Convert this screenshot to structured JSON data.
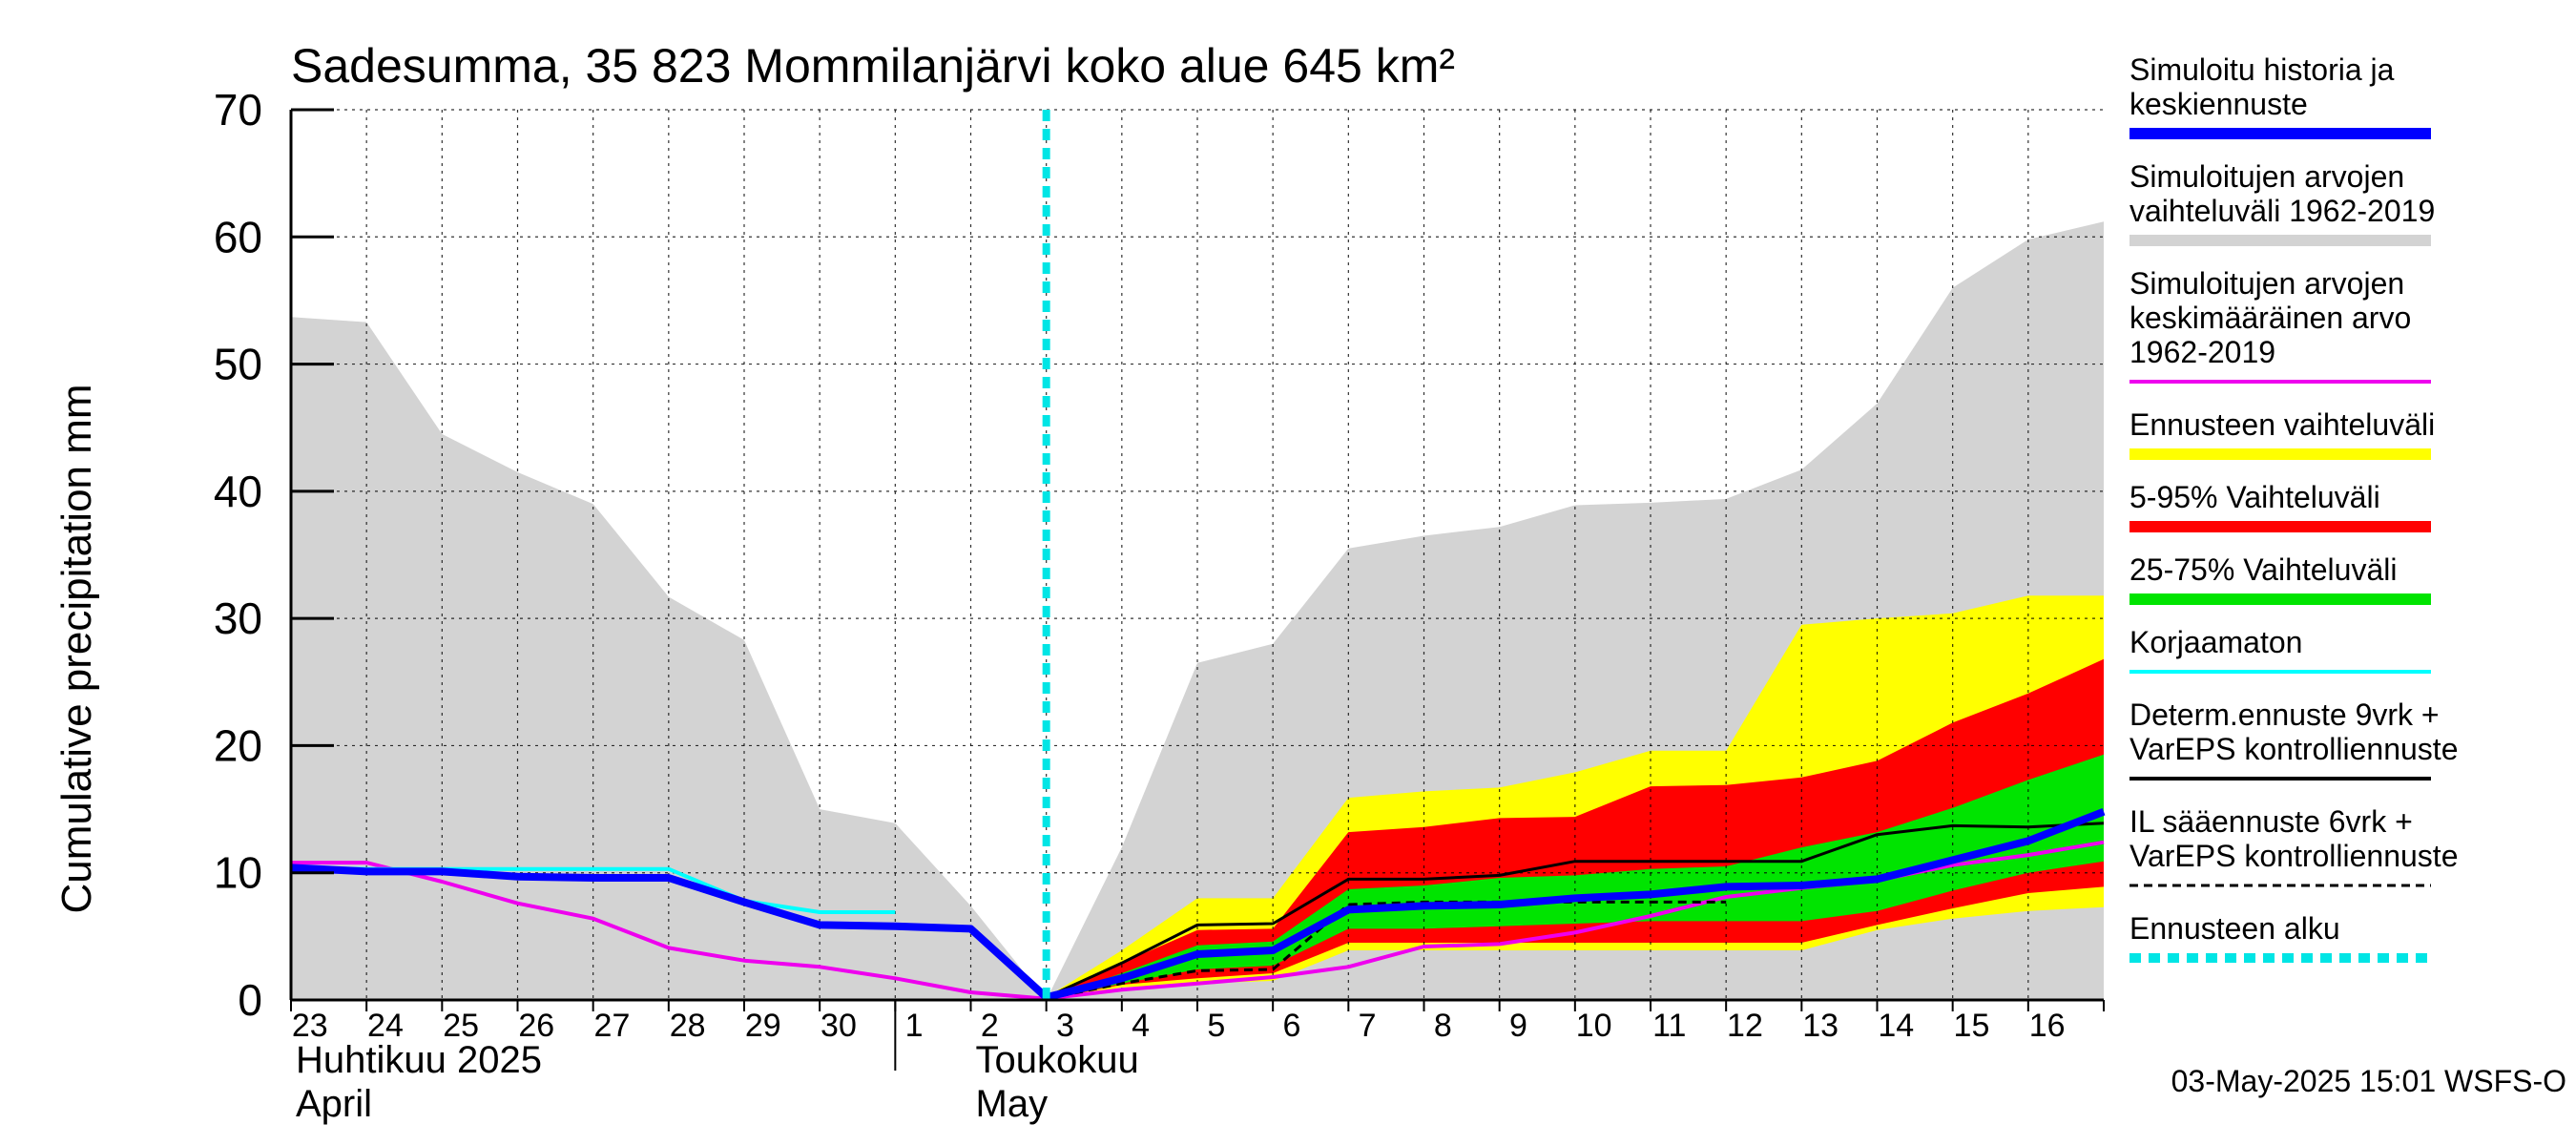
{
  "chart_data": {
    "type": "area",
    "title": "Sadesumma, 35 823 Mommilanjärvi koko alue 645 km²",
    "ylabel": "Cumulative precipitation   mm",
    "ylim": [
      0,
      70
    ],
    "yticks": [
      0,
      10,
      20,
      30,
      40,
      50,
      60,
      70
    ],
    "x_range": [
      0,
      24
    ],
    "grid": true,
    "day_labels": [
      "23",
      "24",
      "25",
      "26",
      "27",
      "28",
      "29",
      "30",
      "1",
      "2",
      "3",
      "4",
      "5",
      "6",
      "7",
      "8",
      "9",
      "10",
      "11",
      "12",
      "13",
      "14",
      "15",
      "16"
    ],
    "month_labels": [
      {
        "line1": "Huhtikuu  2025",
        "line2": "April",
        "at_day_index": 0
      },
      {
        "line1": "Toukokuu",
        "line2": "May",
        "at_day_index": 9
      }
    ],
    "forecast_start_x": 10.0,
    "timestamp": "03-May-2025 15:01 WSFS-O",
    "colors": {
      "history_range": "#d3d3d3",
      "forecast_range": "#ffff00",
      "p5_95": "#ff0000",
      "p25_75": "#00e400",
      "simulated": "#0000ff",
      "mean": "#ee00ee",
      "uncorrected": "#00ffff",
      "determ": "#000000",
      "il": "#000000",
      "forecast_start": "#00e5e5"
    },
    "series": {
      "history_range": {
        "x": [
          0,
          1,
          2,
          3,
          4,
          5,
          6,
          7,
          8,
          9,
          10,
          11,
          12,
          13,
          14,
          15,
          16,
          17,
          18,
          19,
          20,
          21,
          22,
          23,
          24
        ],
        "upper": [
          53.7,
          53.3,
          44.5,
          41.5,
          39.0,
          31.7,
          28.3,
          15.0,
          13.9,
          7.4,
          0,
          12.0,
          26.5,
          28.0,
          35.5,
          36.5,
          37.2,
          38.9,
          39.1,
          39.4,
          41.7,
          46.9,
          56.0,
          59.8,
          61.2
        ],
        "lower": [
          0,
          0,
          0,
          0,
          0,
          0,
          0,
          0,
          0,
          0,
          0,
          0,
          0,
          0,
          0,
          0,
          0,
          0,
          0,
          0,
          0,
          0,
          0,
          0,
          0
        ]
      },
      "forecast_range": {
        "x": [
          10,
          11,
          12,
          13,
          14,
          15,
          16,
          17,
          18,
          19,
          20,
          21,
          22,
          23,
          24
        ],
        "upper": [
          0.2,
          3.9,
          8.0,
          8.0,
          15.9,
          16.4,
          16.7,
          17.9,
          19.6,
          19.6,
          29.5,
          30.0,
          30.4,
          31.8,
          31.8
        ],
        "lower": [
          0,
          1.0,
          1.3,
          1.5,
          3.9,
          3.9,
          3.9,
          3.9,
          3.9,
          3.9,
          3.9,
          5.5,
          6.4,
          7.0,
          7.3
        ]
      },
      "p5_95": {
        "x": [
          10,
          11,
          12,
          13,
          14,
          15,
          16,
          17,
          18,
          19,
          20,
          21,
          22,
          23,
          24
        ],
        "upper": [
          0.2,
          2.9,
          5.5,
          5.6,
          13.2,
          13.6,
          14.3,
          14.4,
          16.8,
          16.9,
          17.5,
          18.8,
          21.8,
          24.1,
          26.8
        ],
        "lower": [
          0,
          1.2,
          1.7,
          2.1,
          4.5,
          4.5,
          4.5,
          4.5,
          4.5,
          4.5,
          4.5,
          5.9,
          7.2,
          8.4,
          8.9
        ]
      },
      "p25_75": {
        "x": [
          10,
          11,
          12,
          13,
          14,
          15,
          16,
          17,
          18,
          19,
          20,
          21,
          22,
          23,
          24
        ],
        "upper": [
          0.1,
          2.1,
          4.3,
          4.6,
          8.7,
          9.0,
          9.6,
          9.8,
          10.3,
          10.5,
          12.0,
          13.2,
          15.1,
          17.3,
          19.3
        ],
        "lower": [
          0,
          1.3,
          2.4,
          2.7,
          5.6,
          5.6,
          5.8,
          6.0,
          6.2,
          6.2,
          6.2,
          7.0,
          8.6,
          10.0,
          10.9
        ]
      },
      "mean": {
        "name": "Simuloitujen arvojen keskimääräinen arvo 1962-2019",
        "x": [
          0,
          1,
          2,
          3,
          4,
          5,
          6,
          7,
          8,
          9,
          10,
          11,
          12,
          13,
          14,
          15,
          16,
          17,
          18,
          19,
          20,
          21,
          22,
          23,
          24
        ],
        "values": [
          10.8,
          10.8,
          9.3,
          7.6,
          6.4,
          4.1,
          3.1,
          2.6,
          1.7,
          0.6,
          0.1,
          0.8,
          1.3,
          1.8,
          2.6,
          4.2,
          4.4,
          5.3,
          6.6,
          8.1,
          8.8,
          9.4,
          10.6,
          11.4,
          12.4
        ]
      },
      "uncorrected": {
        "name": "Korjaamaton",
        "x": [
          0,
          1,
          2,
          3,
          4,
          5,
          6,
          7,
          8
        ],
        "values": [
          10.4,
          10.3,
          10.3,
          10.3,
          10.3,
          10.3,
          7.8,
          6.9,
          6.9
        ]
      },
      "simulated": {
        "name": "Simuloitu historia ja keskiennuste",
        "x": [
          0,
          1,
          2,
          3,
          4,
          5,
          6,
          7,
          8,
          9,
          10,
          11,
          12,
          13,
          14,
          15,
          16,
          17,
          18,
          19,
          20,
          21,
          22,
          23,
          24
        ],
        "values": [
          10.4,
          10.1,
          10.1,
          9.7,
          9.6,
          9.6,
          7.7,
          5.9,
          5.8,
          5.6,
          0.2,
          1.7,
          3.6,
          3.9,
          7.1,
          7.4,
          7.5,
          8.0,
          8.3,
          8.9,
          9.0,
          9.5,
          11.0,
          12.5,
          14.8
        ]
      },
      "determ": {
        "name": "Determ.ennuste 9vrk + VarEPS kontrolliennuste",
        "x": [
          10,
          11,
          12,
          13,
          14,
          15,
          16,
          17,
          18,
          19,
          20,
          21,
          22,
          23,
          24
        ],
        "values": [
          0.2,
          2.9,
          5.9,
          6.0,
          9.5,
          9.5,
          9.8,
          10.9,
          10.9,
          10.9,
          10.9,
          13.0,
          13.7,
          13.6,
          13.9
        ]
      },
      "il": {
        "name": "IL sääennuste 6vrk + VarEPS kontrolliennuste",
        "x": [
          10,
          11,
          12,
          13,
          14,
          15,
          16,
          17,
          18,
          19
        ],
        "values": [
          0.1,
          1.3,
          2.3,
          2.4,
          7.5,
          7.7,
          7.7,
          7.7,
          7.7,
          7.7
        ]
      }
    },
    "legend": [
      {
        "lines": [
          "Simuloitu historia ja",
          "keskiennuste"
        ],
        "swatch": "simulated",
        "style": "thick"
      },
      {
        "lines": [
          "Simuloitujen arvojen",
          "vaihteluväli 1962-2019"
        ],
        "swatch": "history_range",
        "style": "thick"
      },
      {
        "lines": [
          "Simuloitujen arvojen",
          "keskimääräinen arvo",
          "   1962-2019"
        ],
        "swatch": "mean",
        "style": "thin"
      },
      {
        "lines": [
          "Ennusteen vaihteluväli"
        ],
        "swatch": "forecast_range",
        "style": "thick"
      },
      {
        "lines": [
          "5-95% Vaihteluväli"
        ],
        "swatch": "p5_95",
        "style": "thick"
      },
      {
        "lines": [
          "25-75% Vaihteluväli"
        ],
        "swatch": "p25_75",
        "style": "thick"
      },
      {
        "lines": [
          "Korjaamaton"
        ],
        "swatch": "uncorrected",
        "style": "thin"
      },
      {
        "lines": [
          "Determ.ennuste 9vrk +",
          "VarEPS kontrolliennuste"
        ],
        "swatch": "determ",
        "style": "thin"
      },
      {
        "lines": [
          "IL sääennuste 6vrk  +",
          "  VarEPS kontrolliennuste"
        ],
        "swatch": "il",
        "style": "dashed"
      },
      {
        "lines": [
          "Ennusteen alku"
        ],
        "swatch": "forecast_start",
        "style": "dotted"
      }
    ]
  }
}
